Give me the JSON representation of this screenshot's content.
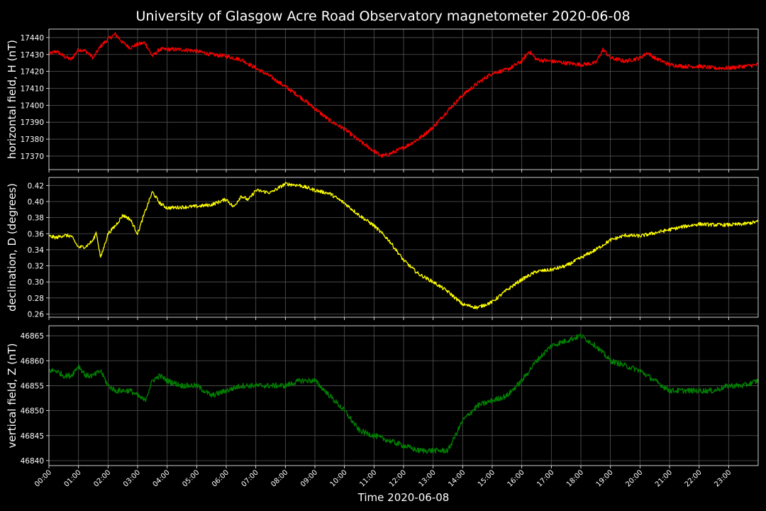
{
  "chart_data": {
    "type": "line",
    "title": "University of Glasgow Acre Road Observatory magnetometer 2020-06-08",
    "xlabel": "Time 2020-06-08",
    "x_ticks": [
      "00:00",
      "01:00",
      "02:00",
      "03:00",
      "04:00",
      "05:00",
      "06:00",
      "07:00",
      "08:00",
      "09:00",
      "10:00",
      "11:00",
      "12:00",
      "13:00",
      "14:00",
      "15:00",
      "16:00",
      "17:00",
      "18:00",
      "19:00",
      "20:00",
      "21:00",
      "22:00",
      "23:00"
    ],
    "xlim": [
      0,
      24
    ],
    "panels": [
      {
        "name": "H",
        "ylabel": "horizontal field, H (nT)",
        "color": "#ff0000",
        "ylim": [
          17362,
          17445
        ],
        "yticks": [
          17370,
          17380,
          17390,
          17400,
          17410,
          17420,
          17430,
          17440
        ],
        "x": [
          0,
          0.25,
          0.5,
          0.75,
          1,
          1.25,
          1.5,
          1.75,
          2,
          2.25,
          2.5,
          2.75,
          3,
          3.25,
          3.5,
          3.75,
          4,
          4.5,
          5,
          5.5,
          6,
          6.5,
          7,
          7.5,
          8,
          8.5,
          9,
          9.5,
          10,
          10.5,
          11,
          11.25,
          11.5,
          12,
          12.5,
          13,
          13.5,
          14,
          14.5,
          15,
          15.5,
          16,
          16.25,
          16.5,
          17,
          17.5,
          18,
          18.5,
          18.75,
          19,
          19.5,
          20,
          20.25,
          20.5,
          21,
          21.5,
          22,
          22.5,
          23,
          23.5,
          24
        ],
        "y": [
          17430,
          17432,
          17429,
          17427,
          17433,
          17432,
          17428,
          17435,
          17439,
          17442,
          17437,
          17434,
          17436,
          17437,
          17429,
          17433,
          17433,
          17433,
          17432,
          17430,
          17429,
          17427,
          17422,
          17417,
          17411,
          17405,
          17398,
          17391,
          17386,
          17379,
          17373,
          17370,
          17371,
          17375,
          17380,
          17387,
          17397,
          17406,
          17413,
          17419,
          17421,
          17426,
          17432,
          17427,
          17426,
          17425,
          17424,
          17425,
          17433,
          17428,
          17426,
          17428,
          17431,
          17428,
          17424,
          17423,
          17423,
          17422,
          17422,
          17423,
          17424
        ]
      },
      {
        "name": "D",
        "ylabel": "declination, D (degrees)",
        "color": "#ffff00",
        "ylim": [
          0.256,
          0.43
        ],
        "yticks": [
          0.26,
          0.28,
          0.3,
          0.32,
          0.34,
          0.36,
          0.38,
          0.4,
          0.42
        ],
        "x": [
          0,
          0.25,
          0.5,
          0.75,
          1,
          1.25,
          1.5,
          1.6,
          1.75,
          2,
          2.25,
          2.5,
          2.75,
          3,
          3.25,
          3.5,
          3.75,
          4,
          4.5,
          5,
          5.5,
          6,
          6.25,
          6.5,
          6.75,
          7,
          7.5,
          8,
          8.5,
          9,
          9.5,
          10,
          10.5,
          11,
          11.5,
          12,
          12.5,
          13,
          13.5,
          14,
          14.5,
          15,
          15.5,
          16,
          16.5,
          17,
          17.5,
          18,
          18.5,
          19,
          19.5,
          20,
          20.5,
          21,
          21.5,
          22,
          22.5,
          23,
          23.5,
          24
        ],
        "y": [
          0.357,
          0.355,
          0.358,
          0.357,
          0.343,
          0.344,
          0.352,
          0.362,
          0.33,
          0.36,
          0.37,
          0.383,
          0.378,
          0.36,
          0.387,
          0.412,
          0.398,
          0.392,
          0.393,
          0.394,
          0.396,
          0.403,
          0.393,
          0.407,
          0.402,
          0.414,
          0.411,
          0.422,
          0.42,
          0.414,
          0.41,
          0.398,
          0.383,
          0.37,
          0.352,
          0.327,
          0.31,
          0.3,
          0.288,
          0.272,
          0.268,
          0.275,
          0.29,
          0.303,
          0.313,
          0.315,
          0.32,
          0.33,
          0.34,
          0.352,
          0.358,
          0.357,
          0.361,
          0.365,
          0.369,
          0.372,
          0.371,
          0.371,
          0.372,
          0.375
        ]
      },
      {
        "name": "Z",
        "ylabel": "vertical field, Z (nT)",
        "color": "#008000",
        "ylim": [
          46839,
          46867
        ],
        "yticks": [
          46840,
          46845,
          46850,
          46855,
          46860,
          46865
        ],
        "x": [
          0,
          0.25,
          0.5,
          0.75,
          1,
          1.25,
          1.5,
          1.75,
          2,
          2.25,
          2.5,
          2.75,
          3,
          3.25,
          3.5,
          3.75,
          4,
          4.5,
          5,
          5.5,
          6,
          6.5,
          7,
          7.5,
          8,
          8.5,
          9,
          9.5,
          10,
          10.5,
          11,
          11.5,
          12,
          12.5,
          13,
          13.5,
          14,
          14.5,
          15,
          15.5,
          16,
          16.5,
          17,
          17.5,
          18,
          18.5,
          19,
          19.5,
          20,
          20.5,
          21,
          21.5,
          22,
          22.5,
          23,
          23.5,
          24
        ],
        "y": [
          46858,
          46858,
          46857,
          46857,
          46859,
          46857,
          46857,
          46858,
          46855,
          46854,
          46854,
          46854,
          46853,
          46852,
          46856,
          46857,
          46856,
          46855,
          46855,
          46853,
          46854,
          46855,
          46855,
          46855,
          46855,
          46856,
          46856,
          46853,
          46850,
          46846,
          46845,
          46844,
          46843,
          46842,
          46842,
          46842,
          46848,
          46851,
          46852,
          46853,
          46856,
          46860,
          46863,
          46864,
          46865,
          46863,
          46860,
          46859,
          46858,
          46856,
          46854,
          46854,
          46854,
          46854,
          46855,
          46855,
          46856
        ]
      }
    ]
  }
}
